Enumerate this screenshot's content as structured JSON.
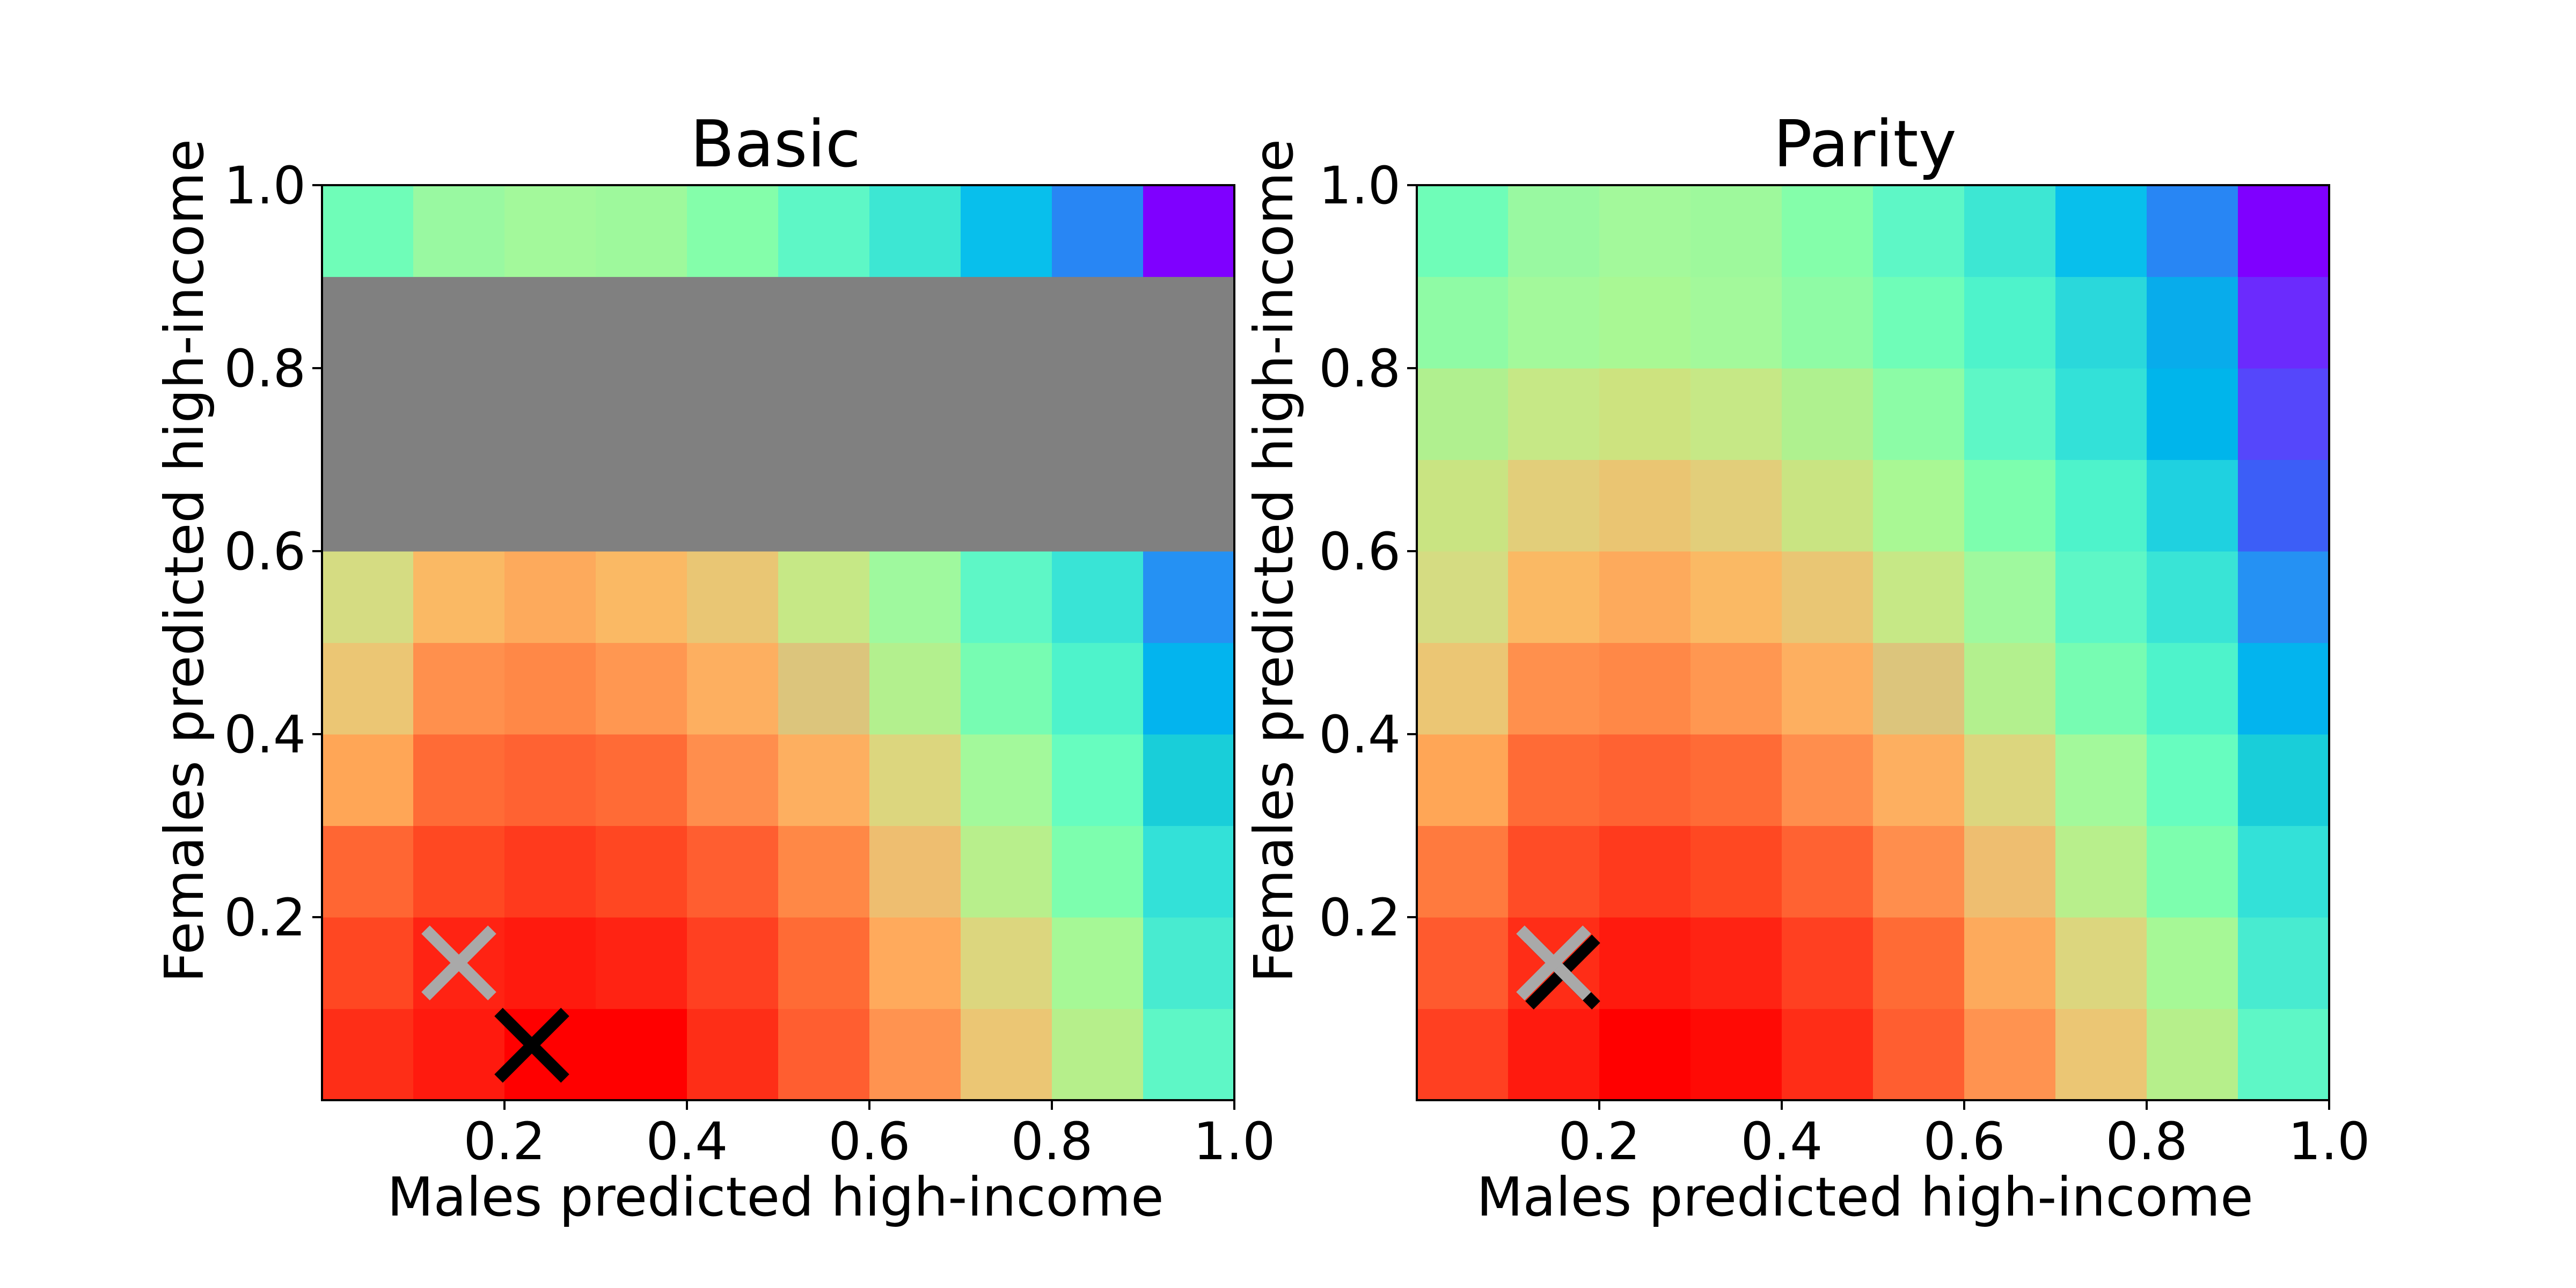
{
  "chart_data": [
    {
      "type": "heatmap",
      "title": "Basic",
      "xlabel": "Males predicted high-income",
      "ylabel": "Females predicted high-income",
      "xlim": [
        0,
        1
      ],
      "ylim": [
        0,
        1
      ],
      "x_ticks": [
        "0.2",
        "0.4",
        "0.6",
        "0.8",
        "1.0"
      ],
      "y_ticks": [
        "0.2",
        "0.4",
        "0.6",
        "0.8",
        "1.0"
      ],
      "grid": false,
      "colormap": "rainbow",
      "missing_color": "#808080",
      "row_order": "bottom-to-top",
      "cells": [
        [
          "#fe2e17",
          "#ff1a0e",
          "#ff0000",
          "#ff0000",
          "#fe2e17",
          "#ff5e30",
          "#ff9350",
          "#ebc674",
          "#b6ef8b",
          "#5ef7c6"
        ],
        [
          "#ff4722",
          "#ff2313",
          "#ff1a0e",
          "#ff2313",
          "#ff4021",
          "#ff6b35",
          "#ffaa5c",
          "#dcd67e",
          "#a6f896",
          "#48ebd0"
        ],
        [
          "#ff6633",
          "#ff4822",
          "#ff3a1d",
          "#ff4722",
          "#ff5e30",
          "#ff8846",
          "#eebe70",
          "#b8ef8c",
          "#7dfeae",
          "#33e1d8"
        ],
        [
          "#ffa656",
          "#ff6b36",
          "#ff6232",
          "#ff6b36",
          "#ff8e4d",
          "#fdaf60",
          "#dcd67e",
          "#a3f99b",
          "#67fdbf",
          "#19ced9"
        ],
        [
          "#ebc674",
          "#ff904d",
          "#ff8847",
          "#ff9751",
          "#fdaf60",
          "#dcc57c",
          "#b3f08e",
          "#77fcb2",
          "#4ef3cb",
          "#03b4ee"
        ],
        [
          "#d5dc82",
          "#fab964",
          "#fdaa5c",
          "#fab964",
          "#e9c674",
          "#c6e886",
          "#9ff99e",
          "#5ef7c6",
          "#39e4d6",
          "#2591f3"
        ],
        [
          null,
          null,
          null,
          null,
          null,
          null,
          null,
          null,
          null,
          null
        ],
        [
          null,
          null,
          null,
          null,
          null,
          null,
          null,
          null,
          null,
          null
        ],
        [
          null,
          null,
          null,
          null,
          null,
          null,
          null,
          null,
          null,
          null
        ],
        [
          "#6ffdb8",
          "#99f9a1",
          "#a3f99b",
          "#9ef99c",
          "#84feaa",
          "#5ef7c6",
          "#3de7d3",
          "#08bfec",
          "#2886f4",
          "#7f00ff"
        ]
      ],
      "markers": [
        {
          "x": 0.15,
          "y": 0.15,
          "color": "#a9a9a9",
          "symbol": "x"
        },
        {
          "x": 0.23,
          "y": 0.06,
          "color": "#000000",
          "symbol": "x"
        }
      ]
    },
    {
      "type": "heatmap",
      "title": "Parity",
      "xlabel": "Males predicted high-income",
      "ylabel": "Females predicted high-income",
      "xlim": [
        0,
        1
      ],
      "ylim": [
        0,
        1
      ],
      "x_ticks": [
        "0.2",
        "0.4",
        "0.6",
        "0.8",
        "1.0"
      ],
      "y_ticks": [
        "0.2",
        "0.4",
        "0.6",
        "0.8",
        "1.0"
      ],
      "grid": false,
      "colormap": "rainbow",
      "missing_color": "#808080",
      "row_order": "bottom-to-top",
      "cells": [
        [
          "#ff4021",
          "#ff1a0e",
          "#ff0000",
          "#ff0a05",
          "#ff2d17",
          "#ff5e30",
          "#ff9350",
          "#ebc674",
          "#b6ef8b",
          "#5ef7c6"
        ],
        [
          "#ff5a2e",
          "#ff2d17",
          "#ff1a0e",
          "#ff2313",
          "#ff4021",
          "#ff6b35",
          "#fdaa5c",
          "#dcd67e",
          "#a6f896",
          "#48ebd0"
        ],
        [
          "#ff7a3e",
          "#ff4c26",
          "#ff3a1d",
          "#ff4822",
          "#ff6232",
          "#ff8e4d",
          "#eebe70",
          "#b8ef8c",
          "#7dfeae",
          "#33e1d8"
        ],
        [
          "#ffa656",
          "#ff6b36",
          "#ff6232",
          "#ff6b36",
          "#ff8e4d",
          "#fdaf60",
          "#dcd67e",
          "#a3f99b",
          "#67fdbf",
          "#19ced9"
        ],
        [
          "#ebc674",
          "#ff904d",
          "#ff8847",
          "#ff9751",
          "#fdaf60",
          "#dcc57c",
          "#b3f08e",
          "#77fcb2",
          "#4ef3cb",
          "#03b4ee"
        ],
        [
          "#d5dc82",
          "#fab964",
          "#fdaa5c",
          "#fab964",
          "#e9c674",
          "#c6e886",
          "#9ff99e",
          "#5ef7c6",
          "#39e4d6",
          "#2591f3"
        ],
        [
          "#c9e482",
          "#e2ce7a",
          "#eac572",
          "#e2ce7a",
          "#c9e482",
          "#a9f894",
          "#7dfeae",
          "#4ef3cb",
          "#1fd1e0",
          "#3c5ef7"
        ],
        [
          "#b0f08f",
          "#c6e886",
          "#cde37f",
          "#c6e886",
          "#aff18f",
          "#8cfca6",
          "#5ef7c6",
          "#33e1d8",
          "#00b5eb",
          "#5547fb"
        ],
        [
          "#8ffba5",
          "#a3f99b",
          "#a9f894",
          "#a3f99b",
          "#8ffba5",
          "#6ffdb8",
          "#4ef3cb",
          "#2ad8db",
          "#08aceb",
          "#6b2bfd"
        ],
        [
          "#6ffdb8",
          "#99f9a1",
          "#a3f99b",
          "#9ef99c",
          "#84feaa",
          "#5ef7c6",
          "#3de7d3",
          "#08bfec",
          "#2886f4",
          "#7f00ff"
        ]
      ],
      "markers": [
        {
          "x": 0.16,
          "y": 0.14,
          "color": "#000000",
          "symbol": "x"
        },
        {
          "x": 0.15,
          "y": 0.15,
          "color": "#a9a9a9",
          "symbol": "x"
        }
      ]
    }
  ]
}
